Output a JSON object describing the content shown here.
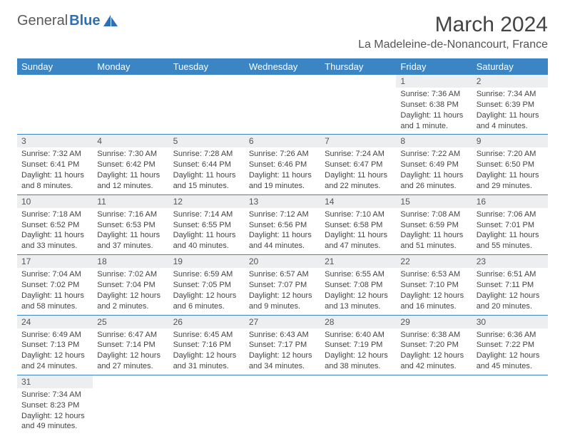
{
  "logo": {
    "text1": "General",
    "text2": "Blue",
    "sail_color": "#2f6fb3"
  },
  "title": "March 2024",
  "location": "La Madeleine-de-Nonancourt, France",
  "weekdays": [
    "Sunday",
    "Monday",
    "Tuesday",
    "Wednesday",
    "Thursday",
    "Friday",
    "Saturday"
  ],
  "colors": {
    "header_bg": "#3b85c5",
    "header_text": "#ffffff",
    "daynum_bg": "#eceeef",
    "cell_border": "#3b85c5",
    "body_text": "#444444"
  },
  "typography": {
    "month_title_pt": 30,
    "location_pt": 16,
    "weekday_pt": 13,
    "daynum_pt": 12,
    "content_pt": 11
  },
  "weeks": [
    [
      null,
      null,
      null,
      null,
      null,
      {
        "n": "1",
        "sr": "Sunrise: 7:36 AM",
        "ss": "Sunset: 6:38 PM",
        "dl": "Daylight: 11 hours and 1 minute."
      },
      {
        "n": "2",
        "sr": "Sunrise: 7:34 AM",
        "ss": "Sunset: 6:39 PM",
        "dl": "Daylight: 11 hours and 4 minutes."
      }
    ],
    [
      {
        "n": "3",
        "sr": "Sunrise: 7:32 AM",
        "ss": "Sunset: 6:41 PM",
        "dl": "Daylight: 11 hours and 8 minutes."
      },
      {
        "n": "4",
        "sr": "Sunrise: 7:30 AM",
        "ss": "Sunset: 6:42 PM",
        "dl": "Daylight: 11 hours and 12 minutes."
      },
      {
        "n": "5",
        "sr": "Sunrise: 7:28 AM",
        "ss": "Sunset: 6:44 PM",
        "dl": "Daylight: 11 hours and 15 minutes."
      },
      {
        "n": "6",
        "sr": "Sunrise: 7:26 AM",
        "ss": "Sunset: 6:46 PM",
        "dl": "Daylight: 11 hours and 19 minutes."
      },
      {
        "n": "7",
        "sr": "Sunrise: 7:24 AM",
        "ss": "Sunset: 6:47 PM",
        "dl": "Daylight: 11 hours and 22 minutes."
      },
      {
        "n": "8",
        "sr": "Sunrise: 7:22 AM",
        "ss": "Sunset: 6:49 PM",
        "dl": "Daylight: 11 hours and 26 minutes."
      },
      {
        "n": "9",
        "sr": "Sunrise: 7:20 AM",
        "ss": "Sunset: 6:50 PM",
        "dl": "Daylight: 11 hours and 29 minutes."
      }
    ],
    [
      {
        "n": "10",
        "sr": "Sunrise: 7:18 AM",
        "ss": "Sunset: 6:52 PM",
        "dl": "Daylight: 11 hours and 33 minutes."
      },
      {
        "n": "11",
        "sr": "Sunrise: 7:16 AM",
        "ss": "Sunset: 6:53 PM",
        "dl": "Daylight: 11 hours and 37 minutes."
      },
      {
        "n": "12",
        "sr": "Sunrise: 7:14 AM",
        "ss": "Sunset: 6:55 PM",
        "dl": "Daylight: 11 hours and 40 minutes."
      },
      {
        "n": "13",
        "sr": "Sunrise: 7:12 AM",
        "ss": "Sunset: 6:56 PM",
        "dl": "Daylight: 11 hours and 44 minutes."
      },
      {
        "n": "14",
        "sr": "Sunrise: 7:10 AM",
        "ss": "Sunset: 6:58 PM",
        "dl": "Daylight: 11 hours and 47 minutes."
      },
      {
        "n": "15",
        "sr": "Sunrise: 7:08 AM",
        "ss": "Sunset: 6:59 PM",
        "dl": "Daylight: 11 hours and 51 minutes."
      },
      {
        "n": "16",
        "sr": "Sunrise: 7:06 AM",
        "ss": "Sunset: 7:01 PM",
        "dl": "Daylight: 11 hours and 55 minutes."
      }
    ],
    [
      {
        "n": "17",
        "sr": "Sunrise: 7:04 AM",
        "ss": "Sunset: 7:02 PM",
        "dl": "Daylight: 11 hours and 58 minutes."
      },
      {
        "n": "18",
        "sr": "Sunrise: 7:02 AM",
        "ss": "Sunset: 7:04 PM",
        "dl": "Daylight: 12 hours and 2 minutes."
      },
      {
        "n": "19",
        "sr": "Sunrise: 6:59 AM",
        "ss": "Sunset: 7:05 PM",
        "dl": "Daylight: 12 hours and 6 minutes."
      },
      {
        "n": "20",
        "sr": "Sunrise: 6:57 AM",
        "ss": "Sunset: 7:07 PM",
        "dl": "Daylight: 12 hours and 9 minutes."
      },
      {
        "n": "21",
        "sr": "Sunrise: 6:55 AM",
        "ss": "Sunset: 7:08 PM",
        "dl": "Daylight: 12 hours and 13 minutes."
      },
      {
        "n": "22",
        "sr": "Sunrise: 6:53 AM",
        "ss": "Sunset: 7:10 PM",
        "dl": "Daylight: 12 hours and 16 minutes."
      },
      {
        "n": "23",
        "sr": "Sunrise: 6:51 AM",
        "ss": "Sunset: 7:11 PM",
        "dl": "Daylight: 12 hours and 20 minutes."
      }
    ],
    [
      {
        "n": "24",
        "sr": "Sunrise: 6:49 AM",
        "ss": "Sunset: 7:13 PM",
        "dl": "Daylight: 12 hours and 24 minutes."
      },
      {
        "n": "25",
        "sr": "Sunrise: 6:47 AM",
        "ss": "Sunset: 7:14 PM",
        "dl": "Daylight: 12 hours and 27 minutes."
      },
      {
        "n": "26",
        "sr": "Sunrise: 6:45 AM",
        "ss": "Sunset: 7:16 PM",
        "dl": "Daylight: 12 hours and 31 minutes."
      },
      {
        "n": "27",
        "sr": "Sunrise: 6:43 AM",
        "ss": "Sunset: 7:17 PM",
        "dl": "Daylight: 12 hours and 34 minutes."
      },
      {
        "n": "28",
        "sr": "Sunrise: 6:40 AM",
        "ss": "Sunset: 7:19 PM",
        "dl": "Daylight: 12 hours and 38 minutes."
      },
      {
        "n": "29",
        "sr": "Sunrise: 6:38 AM",
        "ss": "Sunset: 7:20 PM",
        "dl": "Daylight: 12 hours and 42 minutes."
      },
      {
        "n": "30",
        "sr": "Sunrise: 6:36 AM",
        "ss": "Sunset: 7:22 PM",
        "dl": "Daylight: 12 hours and 45 minutes."
      }
    ],
    [
      {
        "n": "31",
        "sr": "Sunrise: 7:34 AM",
        "ss": "Sunset: 8:23 PM",
        "dl": "Daylight: 12 hours and 49 minutes."
      },
      null,
      null,
      null,
      null,
      null,
      null
    ]
  ]
}
